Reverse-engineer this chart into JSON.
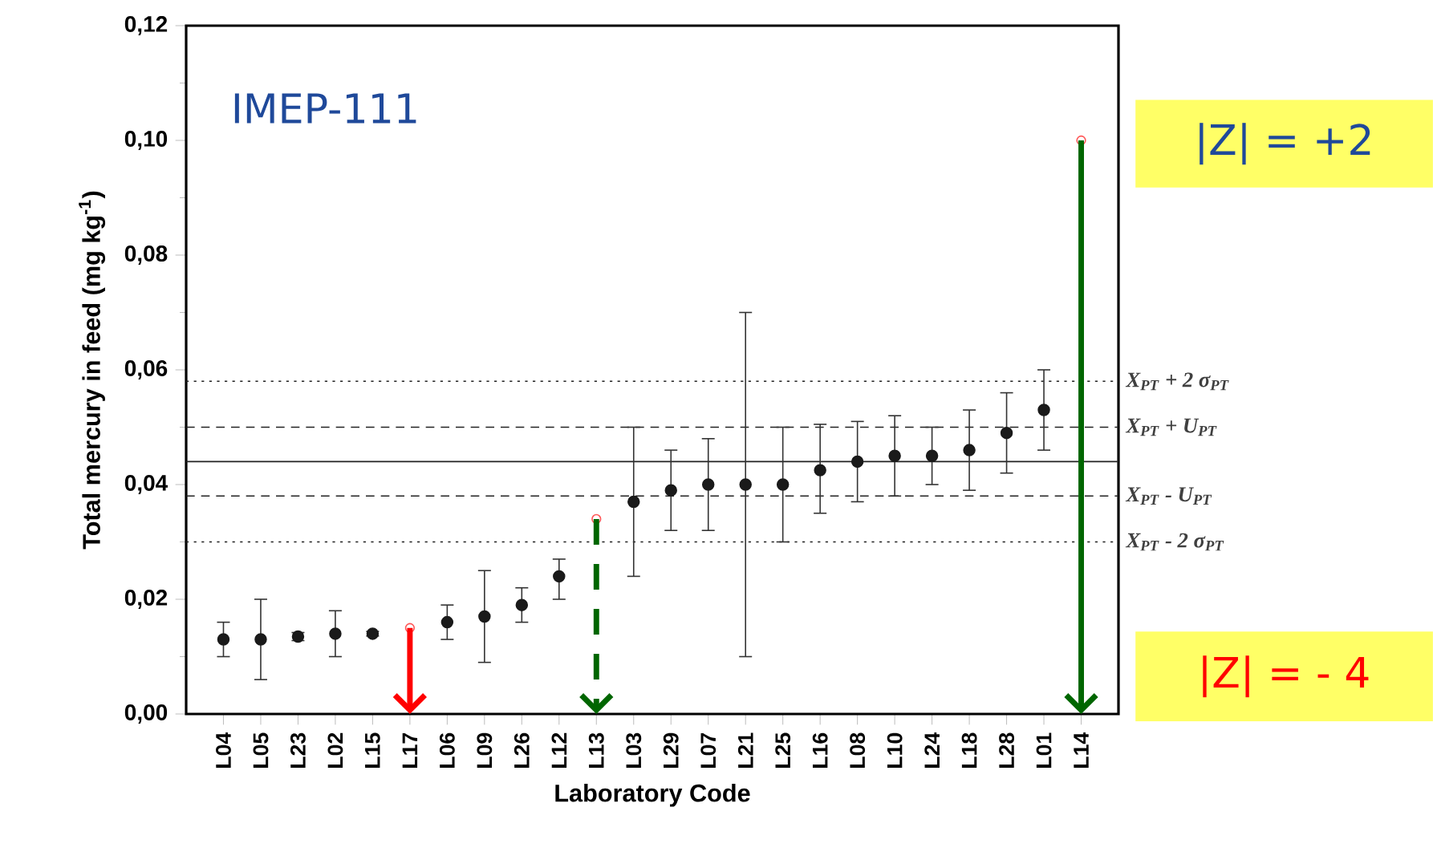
{
  "chart_data": {
    "type": "scatter",
    "xlabel": "Laboratory Code",
    "ylabel": "Total mercury in feed (mg kg$^{-1}$)",
    "annotations": [
      "IMEP-111",
      "|Z| = +2",
      "|Z| = - 4"
    ],
    "categories": [
      "L04",
      "L05",
      "L23",
      "L02",
      "L15",
      "L17",
      "L06",
      "L09",
      "L26",
      "L12",
      "L13",
      "L03",
      "L29",
      "L07",
      "L21",
      "L25",
      "L16",
      "L08",
      "L10",
      "L24",
      "L18",
      "L28",
      "L01",
      "L14"
    ],
    "ylim": [
      0,
      0.12
    ],
    "yticks": [
      {
        "value": 0,
        "label": "0,00"
      },
      {
        "value": 0.01,
        "label": null
      },
      {
        "value": 0.02,
        "label": "0,02"
      },
      {
        "value": 0.03,
        "label": null
      },
      {
        "value": 0.04,
        "label": "0,04"
      },
      {
        "value": 0.05,
        "label": null
      },
      {
        "value": 0.06,
        "label": "0,06"
      },
      {
        "value": 0.07,
        "label": null
      },
      {
        "value": 0.08,
        "label": "0,08"
      },
      {
        "value": 0.09,
        "label": null
      },
      {
        "value": 0.1,
        "label": "0,10"
      },
      {
        "value": 0.11,
        "label": null
      },
      {
        "value": 0.12,
        "label": "0,12"
      }
    ],
    "series": [
      {
        "color": "#1a1a1a",
        "values": [
          0.013,
          0.013,
          0.0135,
          0.014,
          0.014,
          null,
          0.016,
          0.017,
          0.019,
          0.024,
          null,
          0.037,
          0.039,
          0.04,
          0.04,
          0.04,
          0.0425,
          0.044,
          0.045,
          0.045,
          0.046,
          0.049,
          0.053,
          null
        ],
        "errors": [
          [
            0.01,
            0.016
          ],
          [
            0.006,
            0.02
          ],
          [
            0.0128,
            0.0142
          ],
          [
            0.01,
            0.018
          ],
          [
            0.0136,
            0.0144
          ],
          null,
          [
            0.013,
            0.019
          ],
          [
            0.009,
            0.025
          ],
          [
            0.016,
            0.022
          ],
          [
            0.02,
            0.027
          ],
          null,
          [
            0.024,
            0.05
          ],
          [
            0.032,
            0.046
          ],
          [
            0.032,
            0.048
          ],
          [
            0.01,
            0.07
          ],
          [
            0.03,
            0.05
          ],
          [
            0.035,
            0.0505
          ],
          [
            0.037,
            0.051
          ],
          [
            0.038,
            0.052
          ],
          [
            0.04,
            0.05
          ],
          [
            0.039,
            0.053
          ],
          [
            0.042,
            0.056
          ],
          [
            0.046,
            0.06
          ],
          null
        ]
      },
      {
        "color": "#ff5555",
        "values": [
          null,
          null,
          null,
          null,
          null,
          0.015,
          null,
          null,
          null,
          null,
          0.034,
          null,
          null,
          null,
          null,
          null,
          null,
          null,
          null,
          null,
          null,
          null,
          null,
          0.1
        ]
      }
    ],
    "ref_lines": [
      {
        "axis": "y",
        "value": 0.058,
        "label": "X$_{PT}$ + 2 σ$_{PT}$",
        "line_style": "dotted"
      },
      {
        "axis": "y",
        "value": 0.05,
        "label": "X$_{PT}$ + U$_{PT}$",
        "line_style": "dashed"
      },
      {
        "axis": "y",
        "value": 0.044,
        "line_style": "solid"
      },
      {
        "axis": "y",
        "value": 0.038,
        "label": "X$_{PT}$ - U$_{PT}$",
        "line_style": "dashed"
      },
      {
        "axis": "y",
        "value": 0.03,
        "label": "X$_{PT}$ - 2 σ$_{PT}$",
        "line_style": "dotted"
      }
    ]
  }
}
